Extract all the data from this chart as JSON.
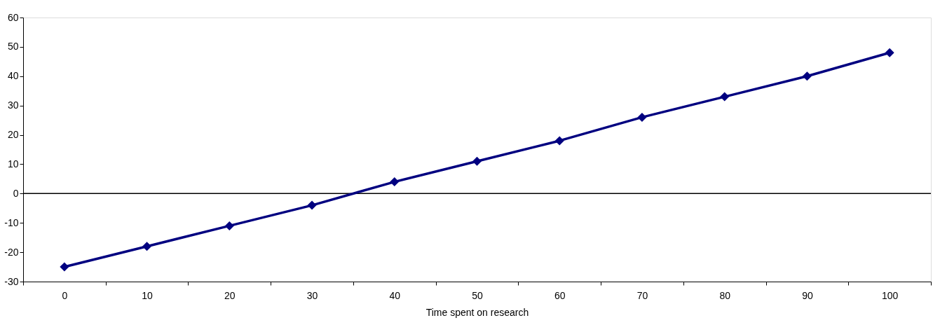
{
  "chart_data": {
    "type": "line",
    "xlabel": "Time spent on research",
    "categories": [
      "0",
      "10",
      "20",
      "30",
      "40",
      "50",
      "60",
      "70",
      "80",
      "90",
      "100"
    ],
    "series": [
      {
        "color": "#000080",
        "values": [
          -25,
          -18,
          -11,
          -4,
          4,
          11,
          18,
          26,
          33,
          40,
          48
        ]
      }
    ],
    "ylim": [
      -30,
      60
    ],
    "yticks": [
      -30,
      -20,
      -10,
      0,
      10,
      20,
      30,
      40,
      50,
      60
    ],
    "ref_lines": [
      {
        "axis": "y",
        "value": 0,
        "color": "#000000"
      }
    ],
    "marker": "diamond",
    "line_style": "solid",
    "grid": false
  }
}
